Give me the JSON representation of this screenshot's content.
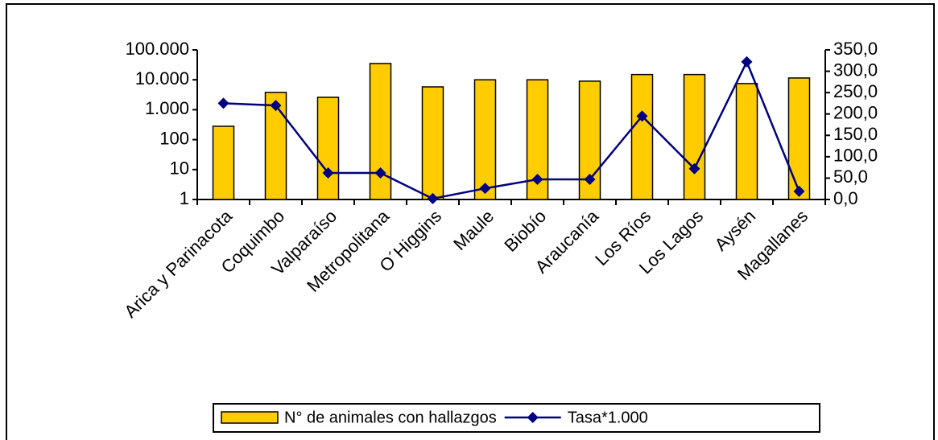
{
  "chart_data": {
    "type": "combo",
    "categories": [
      "Arica y Parinacota",
      "Coquimbo",
      "Valparaíso",
      "Metropolitana",
      "O´Higgins",
      "Maule",
      "Biobío",
      "Araucanía",
      "Los Ríos",
      "Los Lagos",
      "Aysén",
      "Magallanes"
    ],
    "series": [
      {
        "name": "N° de animales con hallazgos",
        "type": "bar",
        "color": "#ffcc00",
        "values": [
          280,
          3800,
          2600,
          35000,
          5800,
          10000,
          10000,
          9000,
          15000,
          15000,
          7500,
          11500
        ]
      },
      {
        "name": "Tasa*1.000",
        "type": "line",
        "axis": "y2",
        "color": "#000080",
        "values": [
          225,
          220,
          62,
          62,
          2,
          26,
          47,
          47,
          195,
          72,
          322,
          19
        ]
      }
    ],
    "ylim": [
      1,
      100000
    ],
    "log_y": true,
    "yticks": [
      1,
      10,
      100,
      {
        "value": 1000,
        "label": "1.000"
      },
      {
        "value": 10000,
        "label": "10.000"
      },
      {
        "value": 100000,
        "label": "100.000"
      }
    ],
    "y2lim": [
      0,
      350
    ],
    "y2ticks": [
      {
        "value": 0,
        "label": "0,0"
      },
      {
        "value": 50,
        "label": "50,0"
      },
      {
        "value": 100,
        "label": "100,0"
      },
      {
        "value": 150,
        "label": "150,0"
      },
      {
        "value": 200,
        "label": "200,0"
      },
      {
        "value": 250,
        "label": "250,0"
      },
      {
        "value": 300,
        "label": "300,0"
      },
      {
        "value": 350,
        "label": "350,0"
      }
    ],
    "legend": "bottom"
  }
}
